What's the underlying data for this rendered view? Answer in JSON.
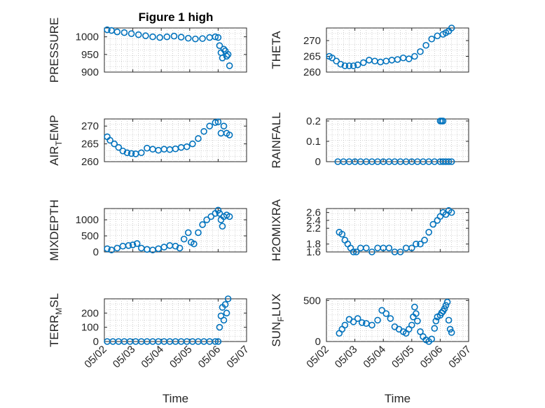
{
  "figure": {
    "title": "Figure 1 high"
  },
  "colors": {
    "marker": "#0072bd",
    "axis": "#262626",
    "grid": "#b0b0b0"
  },
  "chart_data": [
    {
      "type": "scatter",
      "ylabel": "PRESSURE",
      "xlabel": "",
      "title": "Figure 1 high",
      "xlim": [
        2.0,
        7.0
      ],
      "ylim": [
        900,
        1025
      ],
      "yticks": [
        900,
        950,
        1000
      ],
      "ytick_labels": [
        "900",
        "950",
        "1000"
      ],
      "xticks": [
        2,
        3,
        4,
        5,
        6,
        7
      ],
      "xtick_labels": [
        "05/02",
        "05/03",
        "05/04",
        "05/05",
        "05/06",
        "05/07"
      ],
      "show_xtick_labels": false,
      "grid": true,
      "x": [
        2.1,
        2.25,
        2.45,
        2.7,
        2.95,
        3.2,
        3.45,
        3.7,
        3.95,
        4.2,
        4.45,
        4.7,
        4.95,
        5.2,
        5.45,
        5.7,
        5.9,
        6.0,
        6.05,
        6.1,
        6.15,
        6.2,
        6.25,
        6.3,
        6.35,
        6.4
      ],
      "y": [
        1020,
        1018,
        1014,
        1012,
        1009,
        1006,
        1003,
        1000,
        998,
        1000,
        1002,
        999,
        996,
        994,
        995,
        998,
        1000,
        998,
        975,
        955,
        940,
        965,
        960,
        945,
        950,
        918
      ]
    },
    {
      "type": "scatter",
      "ylabel": "THETA",
      "xlabel": "",
      "title": "",
      "xlim": [
        2.0,
        7.0
      ],
      "ylim": [
        260,
        274
      ],
      "yticks": [
        260,
        265,
        270
      ],
      "ytick_labels": [
        "260",
        "265",
        "270"
      ],
      "xticks": [
        2,
        3,
        4,
        5,
        6,
        7
      ],
      "xtick_labels": [
        "05/02",
        "05/03",
        "05/04",
        "05/05",
        "05/06",
        "05/07"
      ],
      "show_xtick_labels": false,
      "grid": true,
      "x": [
        2.1,
        2.2,
        2.35,
        2.5,
        2.65,
        2.8,
        2.95,
        3.1,
        3.3,
        3.5,
        3.7,
        3.9,
        4.1,
        4.3,
        4.5,
        4.7,
        4.9,
        5.1,
        5.3,
        5.5,
        5.7,
        5.9,
        6.1,
        6.2,
        6.3,
        6.4
      ],
      "y": [
        265,
        264.5,
        263.5,
        262.5,
        262,
        262,
        262,
        262.3,
        263,
        263.8,
        263.5,
        263.2,
        263.5,
        263.8,
        264,
        264.5,
        264.2,
        265,
        266.5,
        268.5,
        270.5,
        271.5,
        272,
        272.5,
        273,
        274
      ]
    },
    {
      "type": "scatter",
      "ylabel": "AIR_TEMP",
      "xlabel": "",
      "title": "",
      "xlim": [
        2.0,
        7.0
      ],
      "ylim": [
        260,
        272
      ],
      "yticks": [
        260,
        265,
        270
      ],
      "ytick_labels": [
        "260",
        "265",
        "270"
      ],
      "xticks": [
        2,
        3,
        4,
        5,
        6,
        7
      ],
      "xtick_labels": [
        "05/02",
        "05/03",
        "05/04",
        "05/05",
        "05/06",
        "05/07"
      ],
      "show_xtick_labels": false,
      "grid": true,
      "x": [
        2.1,
        2.2,
        2.35,
        2.5,
        2.65,
        2.8,
        2.95,
        3.1,
        3.3,
        3.5,
        3.7,
        3.9,
        4.1,
        4.3,
        4.5,
        4.7,
        4.9,
        5.1,
        5.3,
        5.5,
        5.7,
        5.9,
        6.0,
        6.1,
        6.2,
        6.3,
        6.4
      ],
      "y": [
        267,
        266,
        265,
        264,
        263,
        262.5,
        262.3,
        262.2,
        262.5,
        263.8,
        263.5,
        263.2,
        263.5,
        263.4,
        263.6,
        264,
        264.2,
        265,
        266.5,
        268.5,
        270,
        271,
        271.2,
        268,
        270,
        268,
        267.5
      ]
    },
    {
      "type": "scatter",
      "ylabel": "RAINFALL",
      "xlabel": "",
      "title": "",
      "xlim": [
        2.0,
        7.0
      ],
      "ylim": [
        0,
        0.21
      ],
      "yticks": [
        0,
        0.1,
        0.2
      ],
      "ytick_labels": [
        "0",
        "0.1",
        "0.2"
      ],
      "xticks": [
        2,
        3,
        4,
        5,
        6,
        7
      ],
      "xtick_labels": [
        "05/02",
        "05/03",
        "05/04",
        "05/05",
        "05/06",
        "05/07"
      ],
      "show_xtick_labels": false,
      "grid": true,
      "x": [
        2.4,
        2.6,
        2.8,
        3.0,
        3.2,
        3.4,
        3.6,
        3.8,
        4.0,
        4.2,
        4.4,
        4.6,
        4.8,
        5.0,
        5.2,
        5.4,
        5.6,
        5.8,
        6.0,
        6.1,
        6.2,
        6.3,
        6.4,
        6.0,
        6.05,
        6.1
      ],
      "y": [
        0,
        0,
        0,
        0,
        0,
        0,
        0,
        0,
        0,
        0,
        0,
        0,
        0,
        0,
        0,
        0,
        0,
        0,
        0,
        0,
        0,
        0,
        0,
        0.2,
        0.2,
        0.2
      ]
    },
    {
      "type": "scatter",
      "ylabel": "MIXDEPTH",
      "xlabel": "",
      "title": "",
      "xlim": [
        2.0,
        7.0
      ],
      "ylim": [
        0,
        1350
      ],
      "yticks": [
        0,
        500,
        1000
      ],
      "ytick_labels": [
        "0",
        "500",
        "1000"
      ],
      "xticks": [
        2,
        3,
        4,
        5,
        6,
        7
      ],
      "xtick_labels": [
        "05/02",
        "05/03",
        "05/04",
        "05/05",
        "05/06",
        "05/07"
      ],
      "show_xtick_labels": false,
      "grid": true,
      "x": [
        2.1,
        2.25,
        2.45,
        2.65,
        2.85,
        3.0,
        3.15,
        3.3,
        3.5,
        3.7,
        3.9,
        4.1,
        4.3,
        4.5,
        4.65,
        4.8,
        4.95,
        5.05,
        5.15,
        5.3,
        5.45,
        5.6,
        5.75,
        5.9,
        6.0,
        6.05,
        6.1,
        6.15,
        6.2,
        6.3,
        6.4
      ],
      "y": [
        100,
        60,
        120,
        180,
        200,
        220,
        260,
        120,
        80,
        60,
        100,
        150,
        200,
        180,
        120,
        400,
        600,
        300,
        250,
        600,
        850,
        1000,
        1100,
        1200,
        1300,
        1200,
        1000,
        800,
        1100,
        1150,
        1100
      ]
    },
    {
      "type": "scatter",
      "ylabel": "H2OMIXRA",
      "xlabel": "",
      "title": "",
      "xlim": [
        2.0,
        7.0
      ],
      "ylim": [
        1.6,
        2.7
      ],
      "yticks": [
        1.6,
        1.8,
        2.2,
        2.4,
        2.6
      ],
      "ytick_labels": [
        "1.6",
        "1.8",
        "2.2",
        "2.4",
        "2.6"
      ],
      "xticks": [
        2,
        3,
        4,
        5,
        6,
        7
      ],
      "xtick_labels": [
        "05/02",
        "05/03",
        "05/04",
        "05/05",
        "05/06",
        "05/07"
      ],
      "show_xtick_labels": false,
      "grid": true,
      "x": [
        2.45,
        2.55,
        2.65,
        2.75,
        2.85,
        2.95,
        3.05,
        3.2,
        3.4,
        3.6,
        3.8,
        4.0,
        4.2,
        4.4,
        4.6,
        4.8,
        5.0,
        5.15,
        5.3,
        5.45,
        5.6,
        5.75,
        5.9,
        6.0,
        6.1,
        6.2,
        6.3,
        6.4
      ],
      "y": [
        2.1,
        2.05,
        1.9,
        1.8,
        1.7,
        1.6,
        1.6,
        1.7,
        1.7,
        1.6,
        1.7,
        1.7,
        1.7,
        1.6,
        1.6,
        1.7,
        1.7,
        1.8,
        1.8,
        1.9,
        2.1,
        2.3,
        2.4,
        2.5,
        2.6,
        2.55,
        2.65,
        2.6
      ]
    },
    {
      "type": "scatter",
      "ylabel": "TERR_MSL",
      "xlabel": "Time",
      "title": "",
      "xlim": [
        2.0,
        7.0
      ],
      "ylim": [
        0,
        300
      ],
      "yticks": [
        0,
        100,
        200
      ],
      "ytick_labels": [
        "0",
        "100",
        "200"
      ],
      "xticks": [
        2,
        3,
        4,
        5,
        6,
        7
      ],
      "xtick_labels": [
        "05/02",
        "05/03",
        "05/04",
        "05/05",
        "05/06",
        "05/07"
      ],
      "show_xtick_labels": true,
      "grid": true,
      "x": [
        2.1,
        2.3,
        2.5,
        2.7,
        2.9,
        3.1,
        3.3,
        3.5,
        3.7,
        3.9,
        4.1,
        4.3,
        4.5,
        4.7,
        4.9,
        5.1,
        5.3,
        5.5,
        5.7,
        5.9,
        6.0,
        6.05,
        6.1,
        6.15,
        6.2,
        6.25,
        6.3,
        6.35
      ],
      "y": [
        0,
        0,
        0,
        0,
        0,
        0,
        0,
        0,
        0,
        0,
        0,
        0,
        0,
        0,
        0,
        0,
        0,
        0,
        0,
        0,
        0,
        100,
        180,
        240,
        150,
        260,
        200,
        300
      ]
    },
    {
      "type": "scatter",
      "ylabel": "SUN_FLUX",
      "xlabel": "Time",
      "title": "",
      "xlim": [
        2.0,
        7.0
      ],
      "ylim": [
        0,
        520
      ],
      "yticks": [
        0,
        500
      ],
      "ytick_labels": [
        "0",
        "500"
      ],
      "xticks": [
        2,
        3,
        4,
        5,
        6,
        7
      ],
      "xtick_labels": [
        "05/02",
        "05/03",
        "05/04",
        "05/05",
        "05/06",
        "05/07"
      ],
      "show_xtick_labels": true,
      "grid": true,
      "x": [
        2.45,
        2.55,
        2.65,
        2.8,
        2.95,
        3.1,
        3.25,
        3.4,
        3.6,
        3.8,
        3.95,
        4.1,
        4.25,
        4.4,
        4.55,
        4.7,
        4.8,
        4.9,
        5.0,
        5.05,
        5.1,
        5.15,
        5.2,
        5.3,
        5.4,
        5.5,
        5.6,
        5.7,
        5.8,
        5.85,
        5.9,
        6.0,
        6.05,
        6.1,
        6.15,
        6.2,
        6.25,
        6.3,
        6.35,
        6.4
      ],
      "y": [
        100,
        150,
        200,
        270,
        240,
        280,
        230,
        220,
        200,
        260,
        380,
        340,
        280,
        180,
        150,
        120,
        100,
        150,
        200,
        300,
        420,
        340,
        250,
        120,
        60,
        20,
        0,
        30,
        160,
        250,
        300,
        320,
        350,
        370,
        400,
        440,
        480,
        260,
        150,
        110
      ]
    }
  ]
}
